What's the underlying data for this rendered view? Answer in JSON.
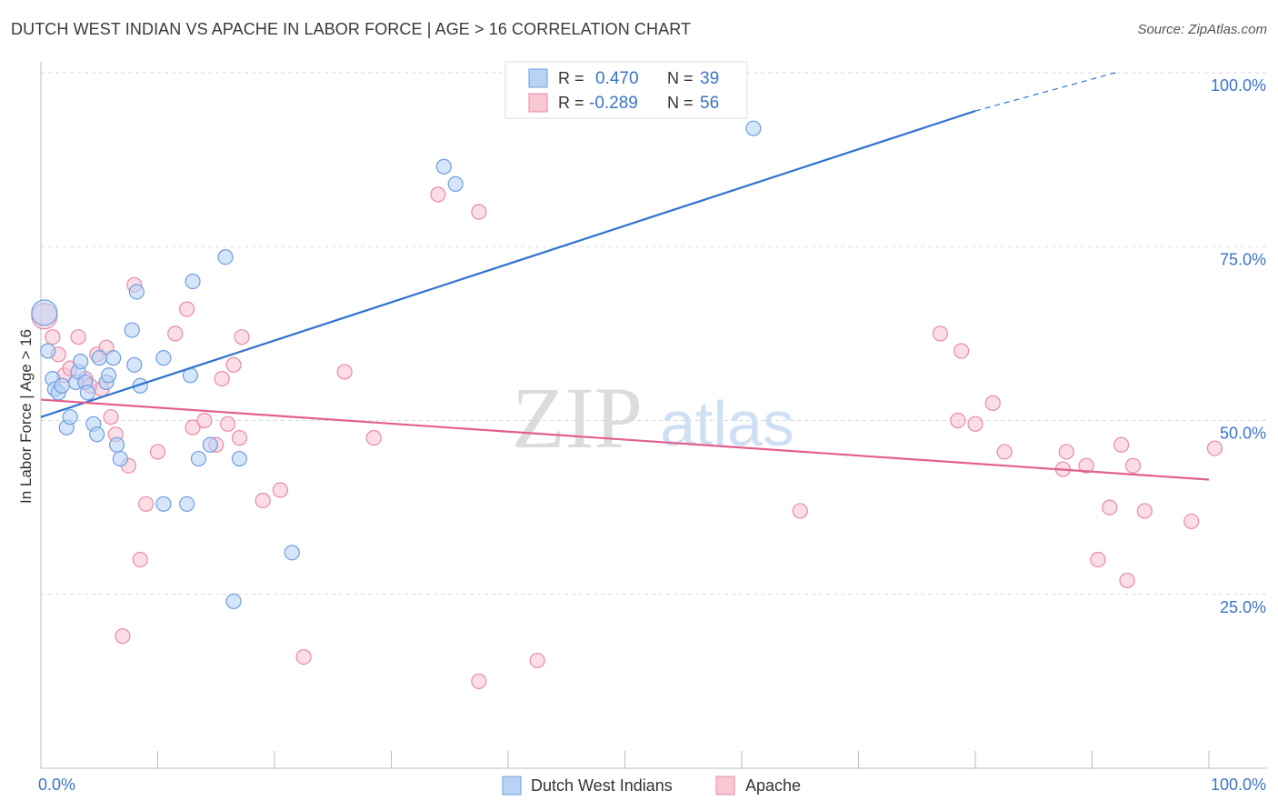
{
  "header": {
    "title": "DUTCH WEST INDIAN VS APACHE IN LABOR FORCE | AGE > 16 CORRELATION CHART",
    "source": "Source: ZipAtlas.com"
  },
  "watermark": {
    "zip": "ZIP",
    "atlas": "atlas"
  },
  "colors": {
    "blue_fill": "#b9d3f7",
    "blue_stroke": "#6f9edf",
    "blue_line": "#2f74d0",
    "pink_fill": "#f9c6d4",
    "pink_stroke": "#e98aa7",
    "pink_line": "#e2608f",
    "axis_label": "#3a74c9",
    "grid": "#d8d8d8"
  },
  "legend": {
    "rows": [
      {
        "r_label": "R =",
        "r_value": "0.470",
        "n_label": "N =",
        "n_value": "39"
      },
      {
        "r_label": "R =",
        "r_value": "-0.289",
        "n_label": "N =",
        "n_value": "56"
      }
    ],
    "bottom": [
      "Dutch West Indians",
      "Apache"
    ]
  },
  "chart_data": {
    "type": "scatter",
    "title": "DUTCH WEST INDIAN VS APACHE IN LABOR FORCE | AGE > 16 CORRELATION CHART",
    "xlabel": "",
    "ylabel": "In Labor Force | Age > 16",
    "xlim": [
      0,
      100
    ],
    "ylim": [
      0,
      105
    ],
    "x_tick_labels": [
      "0.0%",
      "100.0%"
    ],
    "y_ticks": [
      25,
      50,
      75,
      100
    ],
    "y_tick_labels": [
      "25.0%",
      "50.0%",
      "75.0%",
      "100.0%"
    ],
    "grid": true,
    "series": [
      {
        "name": "Dutch West Indians",
        "r": 0.47,
        "n": 39,
        "trend": {
          "x0": 0,
          "y0": 50.5,
          "x1": 80,
          "y1": 94.5,
          "dash_x1": 92,
          "dash_y1": 100
        },
        "points": [
          {
            "x": 0.3,
            "y": 65.5,
            "big": true
          },
          {
            "x": 0.6,
            "y": 60
          },
          {
            "x": 1.0,
            "y": 56
          },
          {
            "x": 1.2,
            "y": 54.5
          },
          {
            "x": 1.5,
            "y": 54
          },
          {
            "x": 1.8,
            "y": 55
          },
          {
            "x": 2.2,
            "y": 49
          },
          {
            "x": 2.5,
            "y": 50.5
          },
          {
            "x": 3.0,
            "y": 55.5
          },
          {
            "x": 3.2,
            "y": 57
          },
          {
            "x": 3.4,
            "y": 58.5
          },
          {
            "x": 3.8,
            "y": 55.5
          },
          {
            "x": 4.0,
            "y": 54
          },
          {
            "x": 4.5,
            "y": 49.5
          },
          {
            "x": 4.8,
            "y": 48
          },
          {
            "x": 5.0,
            "y": 59
          },
          {
            "x": 5.6,
            "y": 55.5
          },
          {
            "x": 5.8,
            "y": 56.5
          },
          {
            "x": 6.2,
            "y": 59
          },
          {
            "x": 6.5,
            "y": 46.5
          },
          {
            "x": 6.8,
            "y": 44.5
          },
          {
            "x": 7.8,
            "y": 63
          },
          {
            "x": 8.0,
            "y": 58
          },
          {
            "x": 8.2,
            "y": 68.5
          },
          {
            "x": 8.5,
            "y": 55
          },
          {
            "x": 10.5,
            "y": 38
          },
          {
            "x": 10.5,
            "y": 59
          },
          {
            "x": 12.5,
            "y": 38
          },
          {
            "x": 12.8,
            "y": 56.5
          },
          {
            "x": 13.0,
            "y": 70
          },
          {
            "x": 13.5,
            "y": 44.5
          },
          {
            "x": 14.5,
            "y": 46.5
          },
          {
            "x": 15.8,
            "y": 73.5
          },
          {
            "x": 16.5,
            "y": 24
          },
          {
            "x": 17.0,
            "y": 44.5
          },
          {
            "x": 21.5,
            "y": 31
          },
          {
            "x": 34.5,
            "y": 86.5
          },
          {
            "x": 35.5,
            "y": 84
          },
          {
            "x": 61,
            "y": 92
          }
        ]
      },
      {
        "name": "Apache",
        "r": -0.289,
        "n": 56,
        "trend": {
          "x0": 0,
          "y0": 53,
          "x1": 100,
          "y1": 41.5
        },
        "points": [
          {
            "x": 0.3,
            "y": 65,
            "big": true
          },
          {
            "x": 1.0,
            "y": 62
          },
          {
            "x": 1.5,
            "y": 59.5
          },
          {
            "x": 2.0,
            "y": 56.5
          },
          {
            "x": 2.5,
            "y": 57.5
          },
          {
            "x": 3.2,
            "y": 62
          },
          {
            "x": 3.8,
            "y": 56
          },
          {
            "x": 4.2,
            "y": 55
          },
          {
            "x": 4.8,
            "y": 59.5
          },
          {
            "x": 5.2,
            "y": 54.5
          },
          {
            "x": 5.6,
            "y": 60.5
          },
          {
            "x": 6.0,
            "y": 50.5
          },
          {
            "x": 6.4,
            "y": 48
          },
          {
            "x": 7.5,
            "y": 43.5
          },
          {
            "x": 7.0,
            "y": 19
          },
          {
            "x": 8.0,
            "y": 69.5
          },
          {
            "x": 8.5,
            "y": 30
          },
          {
            "x": 9.0,
            "y": 38
          },
          {
            "x": 10.0,
            "y": 45.5
          },
          {
            "x": 11.5,
            "y": 62.5
          },
          {
            "x": 12.5,
            "y": 66
          },
          {
            "x": 13.0,
            "y": 49
          },
          {
            "x": 14.0,
            "y": 50
          },
          {
            "x": 15.0,
            "y": 46.5
          },
          {
            "x": 15.5,
            "y": 56
          },
          {
            "x": 16.0,
            "y": 49.5
          },
          {
            "x": 16.5,
            "y": 58
          },
          {
            "x": 17.0,
            "y": 47.5
          },
          {
            "x": 17.2,
            "y": 62
          },
          {
            "x": 19.0,
            "y": 38.5
          },
          {
            "x": 20.5,
            "y": 40
          },
          {
            "x": 22.5,
            "y": 16
          },
          {
            "x": 26.0,
            "y": 57
          },
          {
            "x": 28.5,
            "y": 47.5
          },
          {
            "x": 34.0,
            "y": 82.5
          },
          {
            "x": 37.5,
            "y": 80
          },
          {
            "x": 37.5,
            "y": 12.5
          },
          {
            "x": 42.5,
            "y": 15.5
          },
          {
            "x": 65,
            "y": 37
          },
          {
            "x": 77,
            "y": 62.5
          },
          {
            "x": 78.5,
            "y": 50
          },
          {
            "x": 78.8,
            "y": 60
          },
          {
            "x": 80.0,
            "y": 49.5
          },
          {
            "x": 81.5,
            "y": 52.5
          },
          {
            "x": 82.5,
            "y": 45.5
          },
          {
            "x": 87.5,
            "y": 43
          },
          {
            "x": 87.8,
            "y": 45.5
          },
          {
            "x": 89.5,
            "y": 43.5
          },
          {
            "x": 90.5,
            "y": 30
          },
          {
            "x": 91.5,
            "y": 37.5
          },
          {
            "x": 92.5,
            "y": 46.5
          },
          {
            "x": 93.0,
            "y": 27
          },
          {
            "x": 93.5,
            "y": 43.5
          },
          {
            "x": 94.5,
            "y": 37
          },
          {
            "x": 98.5,
            "y": 35.5
          },
          {
            "x": 100.5,
            "y": 46
          }
        ]
      }
    ]
  }
}
